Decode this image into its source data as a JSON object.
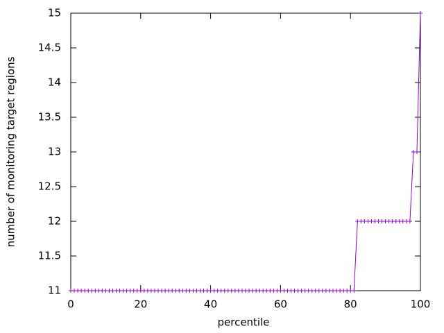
{
  "chart_data": {
    "type": "line",
    "xlabel": "percentile",
    "ylabel": "number of monitoring target regions",
    "x": [
      0,
      1,
      2,
      3,
      4,
      5,
      6,
      7,
      8,
      9,
      10,
      11,
      12,
      13,
      14,
      15,
      16,
      17,
      18,
      19,
      20,
      21,
      22,
      23,
      24,
      25,
      26,
      27,
      28,
      29,
      30,
      31,
      32,
      33,
      34,
      35,
      36,
      37,
      38,
      39,
      40,
      41,
      42,
      43,
      44,
      45,
      46,
      47,
      48,
      49,
      50,
      51,
      52,
      53,
      54,
      55,
      56,
      57,
      58,
      59,
      60,
      61,
      62,
      63,
      64,
      65,
      66,
      67,
      68,
      69,
      70,
      71,
      72,
      73,
      74,
      75,
      76,
      77,
      78,
      79,
      80,
      81,
      82,
      83,
      84,
      85,
      86,
      87,
      88,
      89,
      90,
      91,
      92,
      93,
      94,
      95,
      96,
      97,
      98,
      99,
      100
    ],
    "series": [
      {
        "color": "#9400d3",
        "values": [
          11,
          11,
          11,
          11,
          11,
          11,
          11,
          11,
          11,
          11,
          11,
          11,
          11,
          11,
          11,
          11,
          11,
          11,
          11,
          11,
          11,
          11,
          11,
          11,
          11,
          11,
          11,
          11,
          11,
          11,
          11,
          11,
          11,
          11,
          11,
          11,
          11,
          11,
          11,
          11,
          11,
          11,
          11,
          11,
          11,
          11,
          11,
          11,
          11,
          11,
          11,
          11,
          11,
          11,
          11,
          11,
          11,
          11,
          11,
          11,
          11,
          11,
          11,
          11,
          11,
          11,
          11,
          11,
          11,
          11,
          11,
          11,
          11,
          11,
          11,
          11,
          11,
          11,
          11,
          11,
          11,
          11,
          12,
          12,
          12,
          12,
          12,
          12,
          12,
          12,
          12,
          12,
          12,
          12,
          12,
          12,
          12,
          12,
          13,
          13,
          15
        ]
      }
    ],
    "xlim": [
      0,
      100
    ],
    "xticks": [
      0,
      20,
      40,
      60,
      80,
      100
    ],
    "ylim": [
      11,
      15
    ],
    "yticks": [
      11,
      11.5,
      12,
      12.5,
      13,
      13.5,
      14,
      14.5,
      15
    ]
  }
}
